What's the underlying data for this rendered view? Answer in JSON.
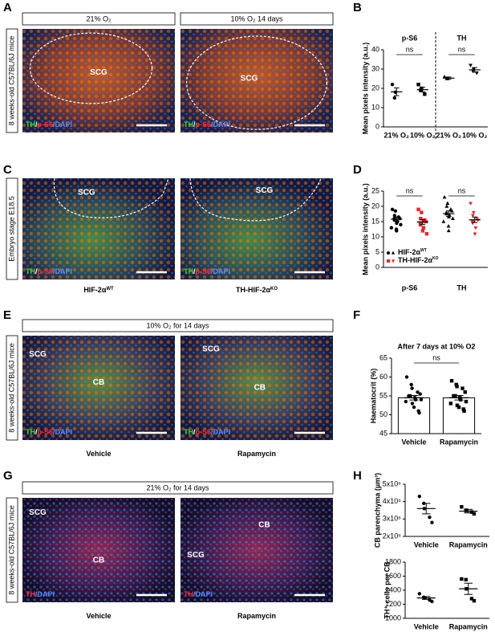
{
  "panels": [
    {
      "label": "A",
      "side": "8 weeks-old C57BL/6J mice",
      "headers": [
        "21% O₂",
        "10% O₂ 14 days"
      ],
      "images": [
        {
          "regions": [
            "SCG"
          ],
          "stain": [
            {
              "text": "TH",
              "color": "#33dd33"
            },
            {
              "text": "/",
              "color": "#ffffff"
            },
            {
              "text": "p-S6",
              "color": "#ff3030"
            },
            {
              "text": "/DAPI",
              "color": "#5a8cff"
            }
          ]
        },
        {
          "regions": [
            "SCG"
          ],
          "stain": [
            {
              "text": "TH",
              "color": "#33dd33"
            },
            {
              "text": "/",
              "color": "#ffffff"
            },
            {
              "text": "p-S6",
              "color": "#ff3030"
            },
            {
              "text": "/DAPI",
              "color": "#5a8cff"
            }
          ]
        }
      ]
    },
    {
      "label": "C",
      "side": "Embryo stage E18.5",
      "headers": [],
      "images": [
        {
          "regions": [
            "SCG"
          ],
          "stain": [
            {
              "text": "TH",
              "color": "#33dd33"
            },
            {
              "text": "/",
              "color": "#ffffff"
            },
            {
              "text": "p-S6",
              "color": "#ff3030"
            },
            {
              "text": "/DAPI",
              "color": "#5a8cff"
            }
          ],
          "caption": {
            "text": "HIF-2α",
            "sup": "WT"
          }
        },
        {
          "regions": [
            "SCG"
          ],
          "stain": [
            {
              "text": "TH",
              "color": "#33dd33"
            },
            {
              "text": "/",
              "color": "#ffffff"
            },
            {
              "text": "p-S6",
              "color": "#ff3030"
            },
            {
              "text": "/DAPI",
              "color": "#5a8cff"
            }
          ],
          "caption": {
            "text": "TH-HIF-2α",
            "sup": "KO"
          }
        }
      ]
    },
    {
      "label": "E",
      "side": "8 weeks-old C57BL/6J mice",
      "headers": [
        "10% O₂ for 14 days"
      ],
      "images": [
        {
          "regions": [
            "SCG",
            "CB"
          ],
          "stain": [
            {
              "text": "TH",
              "color": "#33dd33"
            },
            {
              "text": "/",
              "color": "#ffffff"
            },
            {
              "text": "p-S6",
              "color": "#ff3030"
            },
            {
              "text": "/DAPI",
              "color": "#5a8cff"
            }
          ],
          "caption": {
            "text": "Vehicle"
          }
        },
        {
          "regions": [
            "SCG",
            "CB"
          ],
          "stain": [
            {
              "text": "TH",
              "color": "#33dd33"
            },
            {
              "text": "/",
              "color": "#ffffff"
            },
            {
              "text": "p-S6",
              "color": "#ff3030"
            },
            {
              "text": "/DAPI",
              "color": "#5a8cff"
            }
          ],
          "caption": {
            "text": "Rapamycin"
          }
        }
      ]
    },
    {
      "label": "G",
      "side": "8 weeks-old C57BL/6J mice",
      "headers": [
        "21% O₂ for 14 days"
      ],
      "images": [
        {
          "regions": [
            "SCG",
            "CB"
          ],
          "stain": [
            {
              "text": "TH",
              "color": "#ff3030"
            },
            {
              "text": "/DAPI",
              "color": "#5a8cff"
            }
          ],
          "caption": {
            "text": "Vehicle"
          }
        },
        {
          "regions": [
            "SCG",
            "CB"
          ],
          "stain": [
            {
              "text": "TH",
              "color": "#ff3030"
            },
            {
              "text": "/DAPI",
              "color": "#5a8cff"
            }
          ],
          "caption": {
            "text": "Rapamycin"
          }
        }
      ]
    }
  ],
  "chart_data": [
    {
      "type": "dotplot",
      "label": "B",
      "ylabel": "Mean pixels intensity (a.u.)",
      "ylim": [
        0,
        40
      ],
      "yticks": [
        0,
        10,
        20,
        30,
        40
      ],
      "group_labels": [
        {
          "text": "p-S6",
          "color": "#e8262b"
        },
        {
          "text": "TH",
          "color": "#1aa84a"
        }
      ],
      "group_label_position": "top",
      "divider": true,
      "annotations": [
        "ns",
        "ns"
      ],
      "groups": [
        {
          "category": "21% O₂",
          "color": "#000000",
          "marker": "circle",
          "points": [
            22,
            18,
            15
          ],
          "mean": 18.2,
          "sem": 2
        },
        {
          "category": "10% O₂",
          "color": "#000000",
          "marker": "square",
          "points": [
            22,
            20,
            19,
            17
          ],
          "mean": 19.3,
          "sem": 1.2
        },
        {
          "category": "21% O₂",
          "color": "#000000",
          "marker": "triangle",
          "points": [
            26,
            25,
            25
          ],
          "mean": 25.3,
          "sem": 0.6
        },
        {
          "category": "10% O₂",
          "color": "#000000",
          "marker": "triangle-down",
          "points": [
            32,
            30,
            29,
            28
          ],
          "mean": 29.6,
          "sem": 1.2
        }
      ]
    },
    {
      "type": "dotplot",
      "label": "D",
      "ylabel": "Mean pixels intensity (a.u.)",
      "ylim": [
        0,
        25
      ],
      "yticks": [
        0,
        5,
        10,
        15,
        20,
        25
      ],
      "group_labels": [
        {
          "text": "p-S6",
          "color": "#e8262b"
        },
        {
          "text": "TH",
          "color": "#1aa84a"
        }
      ],
      "group_label_position": "bottom",
      "annotations": [
        "ns",
        "ns"
      ],
      "legend": [
        {
          "label": "HIF-2α",
          "sup": "WT",
          "color": "#000000",
          "markers": [
            "circle",
            "triangle"
          ]
        },
        {
          "label": "TH-HIF-2α",
          "sup": "KO",
          "color": "#e8262b",
          "markers": [
            "square",
            "triangle-down"
          ]
        }
      ],
      "groups": [
        {
          "color": "#000000",
          "marker": "circle",
          "points": [
            19,
            18.5,
            17,
            16.5,
            16,
            16,
            15.5,
            15,
            14.5,
            14,
            13,
            12.5,
            12
          ],
          "mean": 15.8,
          "sem": 0.7
        },
        {
          "color": "#e8262b",
          "marker": "square",
          "points": [
            19,
            18,
            16,
            15.5,
            15,
            14.5,
            14,
            13,
            12,
            11
          ],
          "mean": 14.9,
          "sem": 0.8
        },
        {
          "color": "#000000",
          "marker": "triangle",
          "points": [
            23,
            21,
            20,
            19,
            18.5,
            18,
            17.5,
            17,
            16.5,
            16,
            15,
            13.5,
            12
          ],
          "mean": 17.6,
          "sem": 0.9
        },
        {
          "color": "#e8262b",
          "marker": "triangle-down",
          "points": [
            21,
            18,
            17,
            16,
            15.5,
            15,
            14.5,
            13,
            11
          ],
          "mean": 15.6,
          "sem": 0.9
        }
      ]
    },
    {
      "type": "bar",
      "label": "F",
      "title": "After 7 days at 10% O2",
      "ylabel": "Haematocrit (%)",
      "ylim": [
        45,
        65
      ],
      "yticks": [
        45,
        50,
        55,
        60,
        65
      ],
      "annotations": [
        "ns"
      ],
      "groups": [
        {
          "category": "Vehicle",
          "color": "#000000",
          "marker": "circle",
          "points": [
            60,
            58,
            57,
            56,
            55.5,
            55,
            55,
            54.5,
            54,
            54,
            53.5,
            53,
            52,
            51,
            50.5
          ],
          "mean": 54.5,
          "sem": 0.6
        },
        {
          "category": "Rapamycin",
          "color": "#000000",
          "marker": "square",
          "points": [
            59,
            58,
            57.5,
            57,
            56,
            55,
            55,
            54.5,
            54,
            53.5,
            53,
            52.5,
            52,
            51.5,
            51
          ],
          "mean": 54.5,
          "sem": 0.6
        }
      ]
    },
    {
      "type": "dotplot",
      "label": "H",
      "ylabel": "CB parenchyma (µm³)",
      "ylim": [
        2000000,
        5000000
      ],
      "yticks": [
        {
          "value": 2000000,
          "label": "2x10⁶"
        },
        {
          "value": 3000000,
          "label": "3x10⁶"
        },
        {
          "value": 4000000,
          "label": "4x10⁶"
        },
        {
          "value": 5000000,
          "label": "5x10⁶"
        }
      ],
      "groups": [
        {
          "category": "Vehicle",
          "color": "#000000",
          "marker": "circle",
          "points": [
            4300000,
            3900000,
            3600000,
            3100000,
            2800000
          ],
          "mean": 3600000,
          "sem": 300000
        },
        {
          "category": "Rapamycin",
          "color": "#000000",
          "marker": "square",
          "points": [
            3700000,
            3500000,
            3500000,
            3400000,
            3300000
          ],
          "mean": 3450000,
          "sem": 100000
        }
      ]
    },
    {
      "type": "dotplot",
      "ylabel": "TH⁺ cells per CB",
      "ylim": [
        1000,
        1800
      ],
      "yticks": [
        1000,
        1200,
        1400,
        1600,
        1800
      ],
      "groups": [
        {
          "category": "Vehicle",
          "color": "#000000",
          "marker": "circle",
          "points": [
            1350,
            1300,
            1290,
            1260,
            1240
          ],
          "mean": 1290,
          "sem": 20
        },
        {
          "category": "Rapamycin",
          "color": "#000000",
          "marker": "square",
          "points": [
            1560,
            1550,
            1420,
            1280,
            1250
          ],
          "mean": 1420,
          "sem": 80
        }
      ]
    }
  ]
}
